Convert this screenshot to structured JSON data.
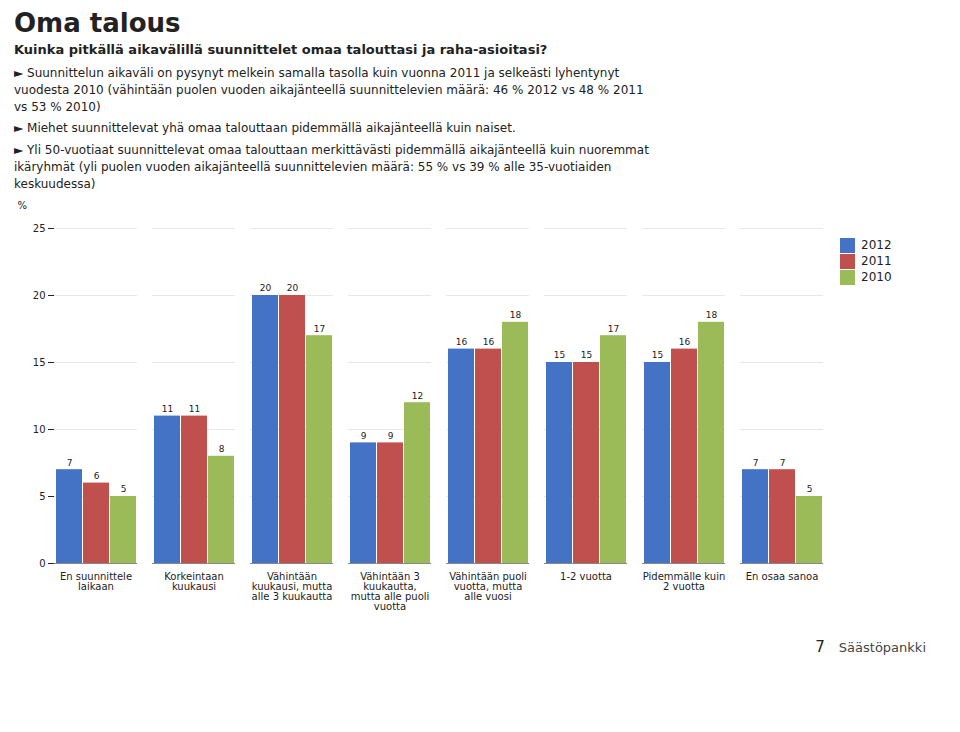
{
  "chart_data": {
    "type": "bar",
    "title": "Oma talous",
    "subtitle": "Kuinka pitkällä aikavälillä suunnittelet omaa talouttasi ja raha-asioitasi?",
    "annotations": [
      "► Suunnittelun aikaväli on pysynyt melkein samalla tasolla kuin vuonna 2011 ja selkeästi lyhentynyt\nvuodesta 2010 (vähintään puolen vuoden aikajänteellä suunnittelevien määrä: 46 % 2012 vs 48 % 2011\nvs 53 % 2010)",
      "► Miehet suunnittelevat yhä omaa talouttaan pidemmällä aikajänteellä kuin naiset.",
      "► Yli 50-vuotiaat suunnittelevat omaa talouttaan merkittävästi pidemmällä aikajänteellä kuin nuoremmat\nikäryhmät (yli puolen vuoden aikajänteellä suunnittelevien määrä: 55 % vs 39 % alle 35-vuotiaiden\nkeskuudessa)"
    ],
    "footer": [
      "7",
      "Säästöpankki"
    ],
    "categories": [
      "En suunnittele\nlaikaan",
      "Korkeintaan\nkuukausi",
      "Vähintään\nkuukausi, mutta\nalle 3 kuukautta",
      "Vähintään 3\nkuukautta,\nmutta alle puoli\nvuotta",
      "Vähintään puoli\nvuotta, mutta\nalle vuosi",
      "1-2 vuotta",
      "Pidemmälle kuin\n2 vuotta",
      "En osaa sanoa"
    ],
    "series": [
      {
        "name": "2012",
        "color": "#4472C4",
        "values": [
          7,
          11,
          20,
          9,
          16,
          15,
          15,
          7
        ]
      },
      {
        "name": "2011",
        "color": "#C0504D",
        "values": [
          6,
          11,
          20,
          9,
          16,
          15,
          16,
          7
        ]
      },
      {
        "name": "2010",
        "color": "#9BBB59",
        "values": [
          5,
          8,
          17,
          12,
          18,
          17,
          18,
          5
        ]
      }
    ],
    "ylabel": "%",
    "ylim": [
      0,
      25
    ],
    "yticks": [
      0,
      5,
      10,
      15,
      20,
      25
    ],
    "grid": true,
    "legend": "upper right",
    "data_labels": true
  }
}
